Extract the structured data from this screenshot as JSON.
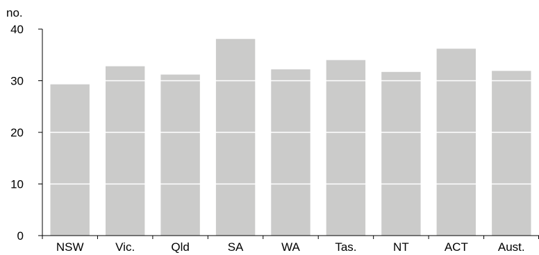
{
  "chart_data": {
    "type": "bar",
    "categories": [
      "NSW",
      "Vic.",
      "Qld",
      "SA",
      "WA",
      "Tas.",
      "NT",
      "ACT",
      "Aust."
    ],
    "values": [
      29.3,
      32.8,
      31.2,
      38.1,
      32.2,
      34.0,
      31.7,
      36.2,
      31.9
    ],
    "ylabel": "no.",
    "ylim": [
      0,
      40
    ],
    "yticks": [
      0,
      10,
      20,
      30,
      40
    ],
    "grid": true,
    "colors": {
      "bar": "#cbcbca",
      "gridline": "#ffffff",
      "axis": "#000000"
    }
  }
}
